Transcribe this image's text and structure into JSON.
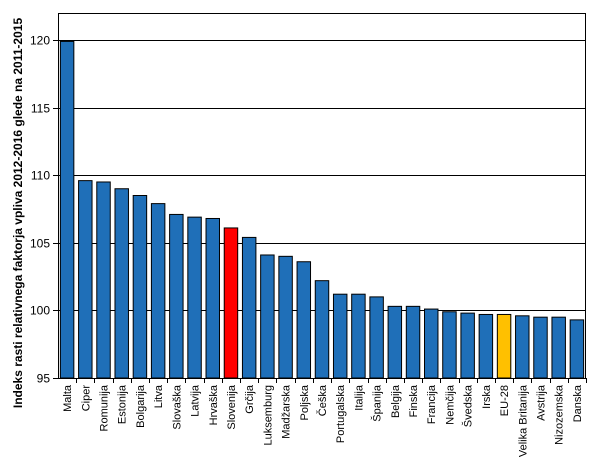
{
  "chart_data": {
    "type": "bar",
    "title": "",
    "xlabel": "",
    "ylabel": "Indeks rasti relativnega faktorja vpliva 2012-2016 glede na 2011-2015",
    "ylim": [
      95,
      122
    ],
    "yticks": [
      95,
      100,
      105,
      110,
      115,
      120
    ],
    "grid": true,
    "legend": "none",
    "categories": [
      "Malta",
      "Ciper",
      "Romunija",
      "Estonija",
      "Bolgarija",
      "Litva",
      "Slovaška",
      "Latvija",
      "Hrvaška",
      "Slovenija",
      "Grčija",
      "Luksemburg",
      "Madžarska",
      "Poljska",
      "Češka",
      "Portugalska",
      "Italija",
      "Španija",
      "Belgija",
      "Finska",
      "Francija",
      "Nemčija",
      "Švedska",
      "Irska",
      "EU-28",
      "Velika Britanija",
      "Avstrija",
      "Nizozemska",
      "Danska"
    ],
    "values": [
      119.9,
      109.6,
      109.5,
      109.0,
      108.5,
      107.9,
      107.1,
      106.9,
      106.8,
      106.1,
      105.4,
      104.1,
      104.0,
      103.6,
      102.2,
      101.2,
      101.2,
      101.0,
      100.3,
      100.3,
      100.1,
      99.9,
      99.8,
      99.7,
      99.7,
      99.6,
      99.5,
      99.5,
      99.3
    ],
    "colors": {
      "default": "#1f6fb8",
      "highlight": "#ff0000",
      "average": "#ffc000",
      "grid": "#000000"
    },
    "highlight_categories": [
      "Slovenija"
    ],
    "average_categories": [
      "EU-28"
    ]
  }
}
